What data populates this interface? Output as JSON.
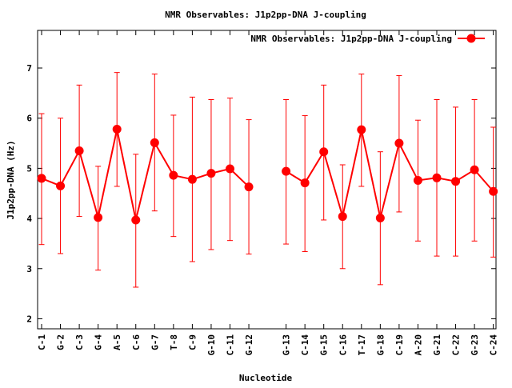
{
  "chart_data": {
    "type": "line",
    "title": "NMR Observables: J1p2pp-DNA J-coupling",
    "xlabel": "Nucleotide",
    "ylabel": "J1p2pp-DNA (Hz)",
    "ylim": [
      1.8,
      7.75
    ],
    "yticks": [
      2,
      3,
      4,
      5,
      6,
      7
    ],
    "grid": false,
    "legend_position": "top-right",
    "categories": [
      "C-1",
      "G-2",
      "C-3",
      "G-4",
      "A-5",
      "C-6",
      "G-7",
      "T-8",
      "C-9",
      "G-10",
      "C-11",
      "G-12",
      "G-13",
      "C-14",
      "G-15",
      "C-16",
      "T-17",
      "G-18",
      "C-19",
      "A-20",
      "G-21",
      "C-22",
      "G-23",
      "C-24"
    ],
    "segments": [
      [
        0,
        11
      ],
      [
        12,
        23
      ]
    ],
    "series": [
      {
        "name": "NMR Observables: J1p2pp-DNA J-coupling",
        "color": "#ff0000",
        "values": [
          4.8,
          4.65,
          5.35,
          4.02,
          5.78,
          3.97,
          5.51,
          4.86,
          4.78,
          4.9,
          4.99,
          4.63,
          4.94,
          4.71,
          5.33,
          4.04,
          5.77,
          4.01,
          5.5,
          4.76,
          4.81,
          4.74,
          4.97,
          4.54
        ],
        "error_low": [
          3.48,
          3.3,
          4.04,
          2.97,
          4.64,
          2.63,
          4.15,
          3.64,
          3.14,
          3.38,
          3.56,
          3.29,
          3.49,
          3.34,
          3.97,
          3.0,
          4.64,
          2.68,
          4.13,
          3.55,
          3.25,
          3.25,
          3.55,
          3.23
        ],
        "error_high": [
          6.09,
          6.0,
          6.66,
          5.04,
          6.91,
          5.28,
          6.88,
          6.06,
          6.42,
          6.37,
          6.4,
          5.97,
          6.37,
          6.05,
          6.66,
          5.07,
          6.88,
          5.33,
          6.85,
          5.96,
          6.37,
          6.22,
          6.37,
          5.82
        ]
      }
    ]
  }
}
